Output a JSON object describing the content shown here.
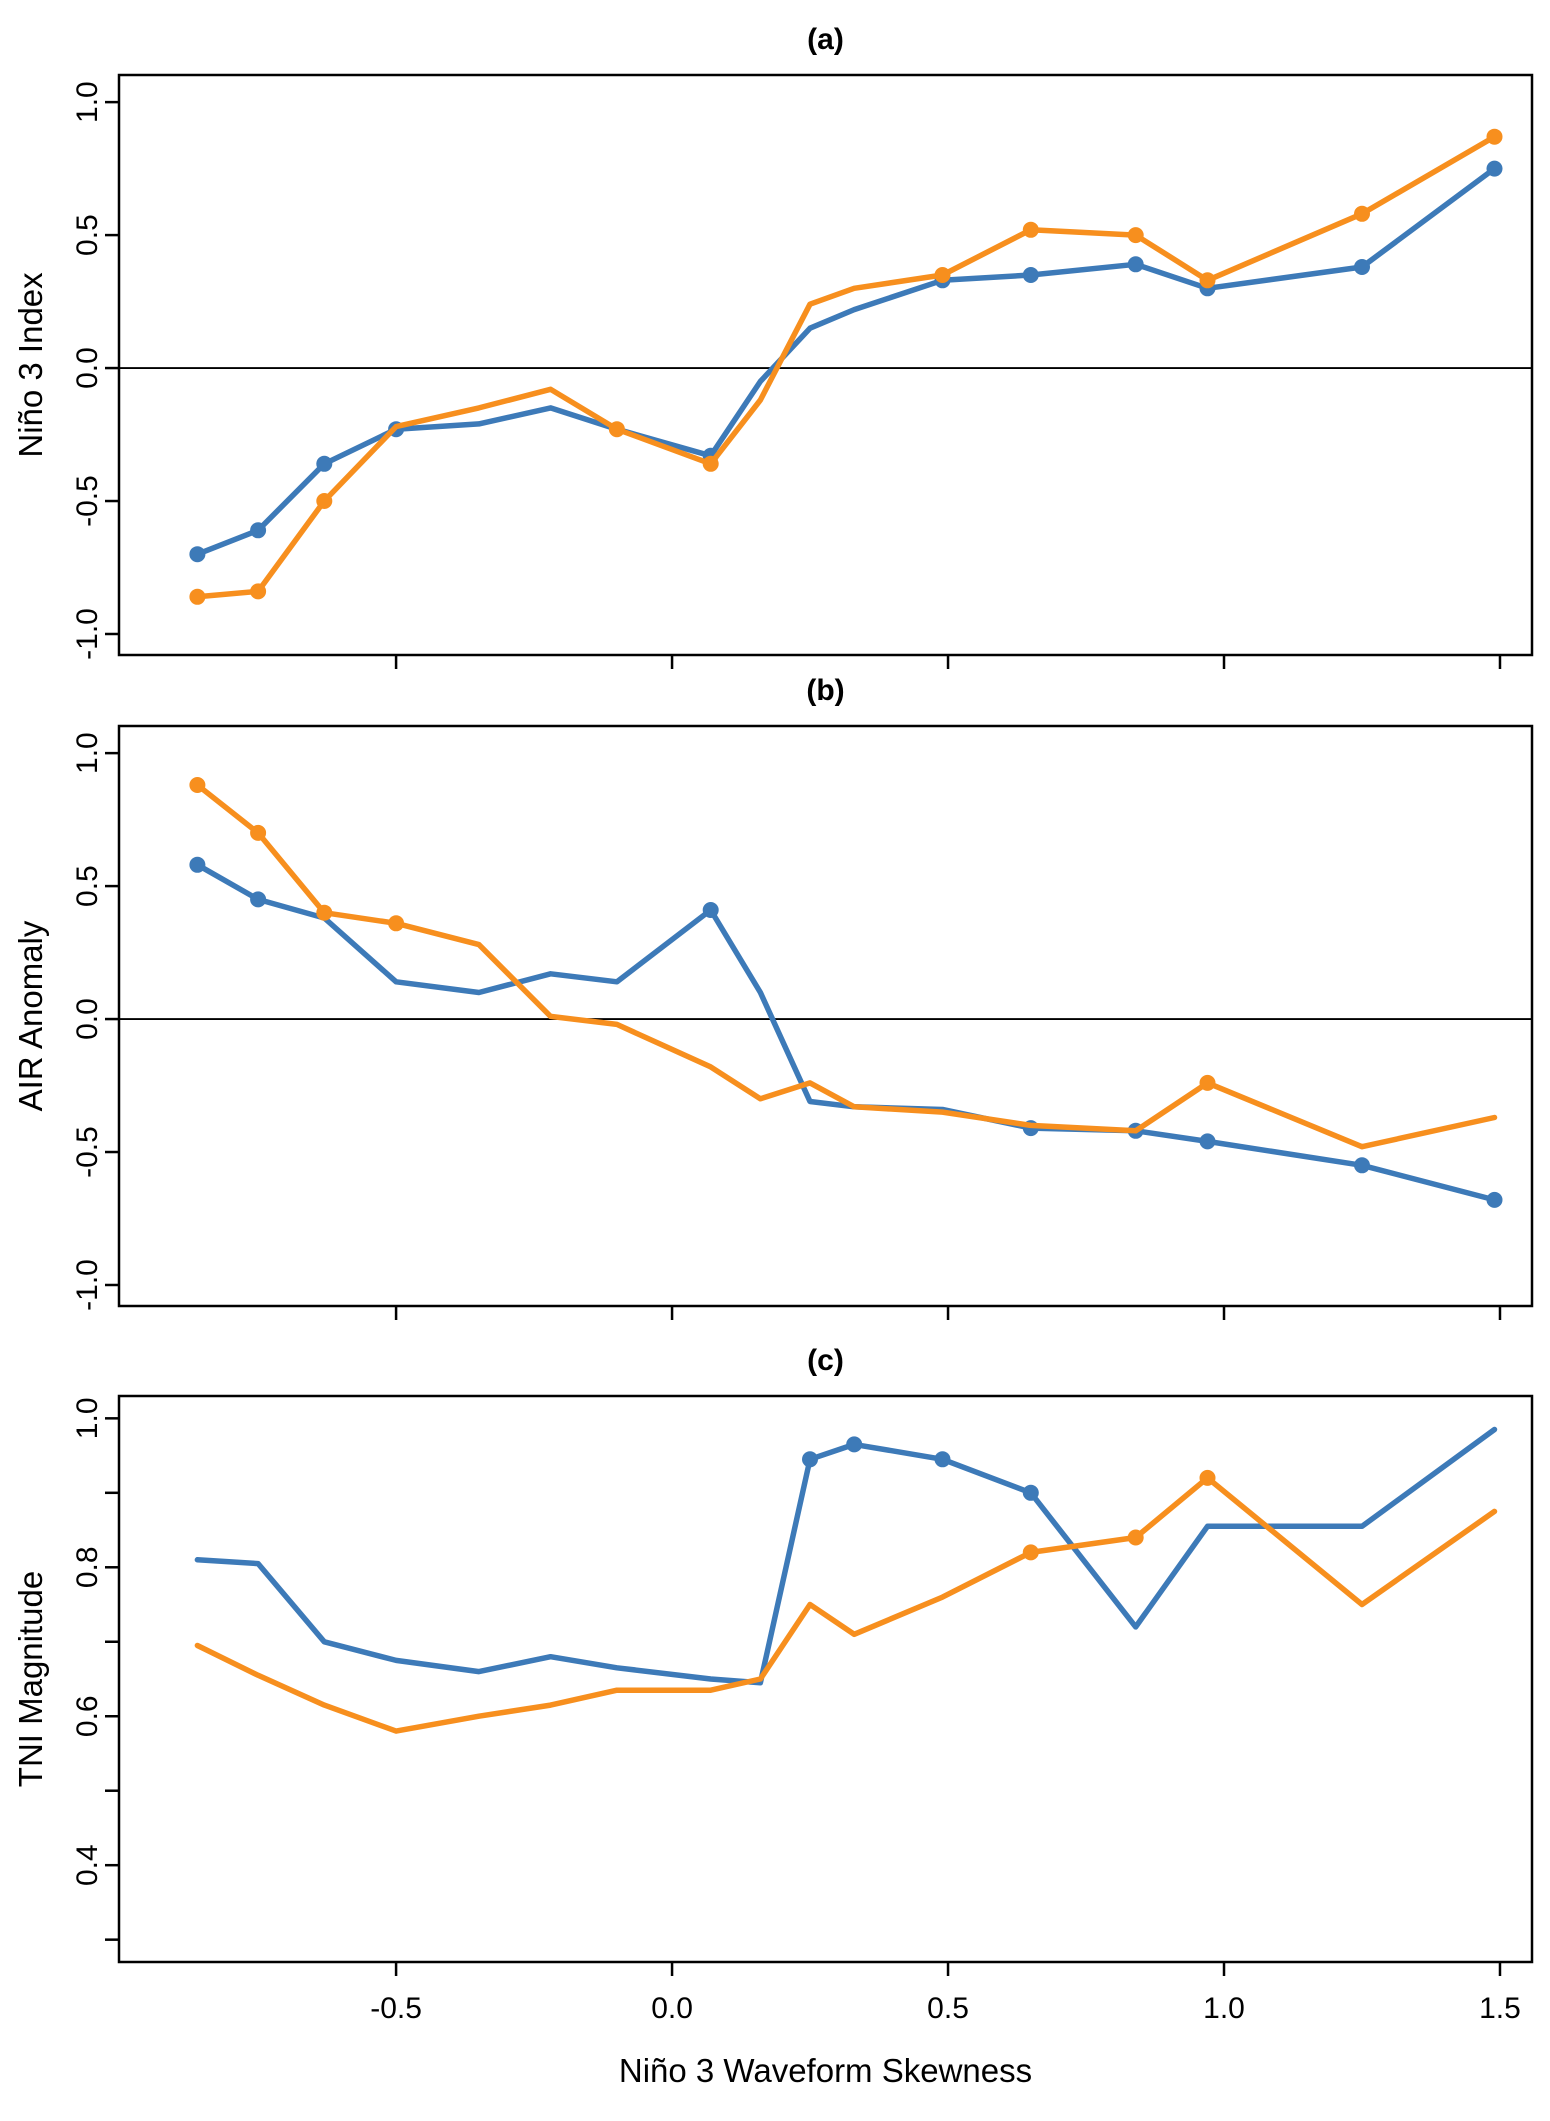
{
  "figure": {
    "background": "#ffffff",
    "blue_color": "#3d7ab8",
    "orange_color": "#f78f1e",
    "x_axis": {
      "title": "Niño 3 Waveform Skewness",
      "xlim": [
        -1.002,
        1.558
      ],
      "ticks": [
        -0.5,
        0.0,
        0.5,
        1.0,
        1.5
      ],
      "tick_labels": [
        "-0.5",
        "0.0",
        "0.5",
        "1.0",
        "1.5"
      ]
    }
  },
  "chart_data": [
    {
      "type": "line",
      "panel_label": "(a)",
      "ylabel": "Niño 3 Index",
      "ylim": [
        -1.079,
        1.102
      ],
      "yticks": [
        1.0,
        0.5,
        0.0,
        -0.5,
        -1.0
      ],
      "ytick_labels": [
        "1.0",
        "0.5",
        "0.0",
        "-0.5",
        "-1.0"
      ],
      "zero_line": true,
      "x": [
        -0.86,
        -0.75,
        -0.63,
        -0.5,
        -0.35,
        -0.22,
        -0.1,
        0.07,
        0.16,
        0.25,
        0.33,
        0.49,
        0.65,
        0.84,
        0.97,
        1.25,
        1.49
      ],
      "series": [
        {
          "name": "blue",
          "values": [
            -0.7,
            -0.61,
            -0.36,
            -0.23,
            -0.21,
            -0.15,
            -0.23,
            -0.33,
            -0.05,
            0.15,
            0.22,
            0.33,
            0.35,
            0.39,
            0.3,
            0.38,
            0.75
          ],
          "marker_indices": [
            0,
            1,
            2,
            3,
            7,
            11,
            12,
            13,
            14,
            15,
            16
          ]
        },
        {
          "name": "orange",
          "values": [
            -0.86,
            -0.84,
            -0.5,
            -0.22,
            -0.15,
            -0.08,
            -0.23,
            -0.36,
            -0.12,
            0.24,
            0.3,
            0.35,
            0.52,
            0.5,
            0.33,
            0.58,
            0.87
          ],
          "marker_indices": [
            0,
            1,
            2,
            6,
            7,
            11,
            12,
            13,
            14,
            15,
            16
          ]
        }
      ]
    },
    {
      "type": "line",
      "panel_label": "(b)",
      "ylabel": "AIR Anomaly",
      "ylim": [
        -1.079,
        1.102
      ],
      "yticks": [
        1.0,
        0.5,
        0.0,
        -0.5,
        -1.0
      ],
      "ytick_labels": [
        "1.0",
        "0.5",
        "0.0",
        "-0.5",
        "-1.0"
      ],
      "zero_line": true,
      "x": [
        -0.86,
        -0.75,
        -0.63,
        -0.5,
        -0.35,
        -0.22,
        -0.1,
        0.07,
        0.16,
        0.25,
        0.33,
        0.49,
        0.65,
        0.84,
        0.97,
        1.25,
        1.49
      ],
      "series": [
        {
          "name": "blue",
          "values": [
            0.58,
            0.45,
            0.38,
            0.14,
            0.1,
            0.17,
            0.14,
            0.41,
            0.1,
            -0.31,
            -0.33,
            -0.34,
            -0.41,
            -0.42,
            -0.46,
            -0.55,
            -0.68
          ],
          "marker_indices": [
            0,
            1,
            7,
            12,
            13,
            14,
            15,
            16
          ]
        },
        {
          "name": "orange",
          "values": [
            0.88,
            0.7,
            0.4,
            0.36,
            0.28,
            0.01,
            -0.02,
            -0.18,
            -0.3,
            -0.24,
            -0.33,
            -0.35,
            -0.4,
            -0.42,
            -0.24,
            -0.48,
            -0.37
          ],
          "marker_indices": [
            0,
            1,
            2,
            3,
            14
          ]
        }
      ]
    },
    {
      "type": "line",
      "panel_label": "(c)",
      "ylabel": "TNI Magnitude",
      "ylim": [
        0.27,
        1.03
      ],
      "yticks": [
        1.0,
        0.9,
        0.8,
        0.7,
        0.6,
        0.5,
        0.4,
        0.3
      ],
      "ytick_labels": [
        "1.0",
        "",
        "0.8",
        "",
        "0.6",
        "",
        "0.4",
        ""
      ],
      "zero_line": false,
      "x": [
        -0.86,
        -0.75,
        -0.63,
        -0.5,
        -0.35,
        -0.22,
        -0.1,
        0.07,
        0.16,
        0.25,
        0.33,
        0.49,
        0.65,
        0.84,
        0.97,
        1.25,
        1.49
      ],
      "series": [
        {
          "name": "blue",
          "values": [
            0.81,
            0.805,
            0.7,
            0.675,
            0.66,
            0.68,
            0.665,
            0.65,
            0.645,
            0.945,
            0.965,
            0.945,
            0.9,
            0.72,
            0.855,
            0.855,
            0.985
          ],
          "marker_indices": [
            9,
            10,
            11,
            12
          ]
        },
        {
          "name": "orange",
          "values": [
            0.695,
            0.655,
            0.615,
            0.58,
            0.6,
            0.615,
            0.635,
            0.635,
            0.65,
            0.75,
            0.71,
            0.76,
            0.82,
            0.84,
            0.92,
            0.75,
            0.875
          ],
          "marker_indices": [
            12,
            13,
            14
          ]
        }
      ]
    }
  ]
}
